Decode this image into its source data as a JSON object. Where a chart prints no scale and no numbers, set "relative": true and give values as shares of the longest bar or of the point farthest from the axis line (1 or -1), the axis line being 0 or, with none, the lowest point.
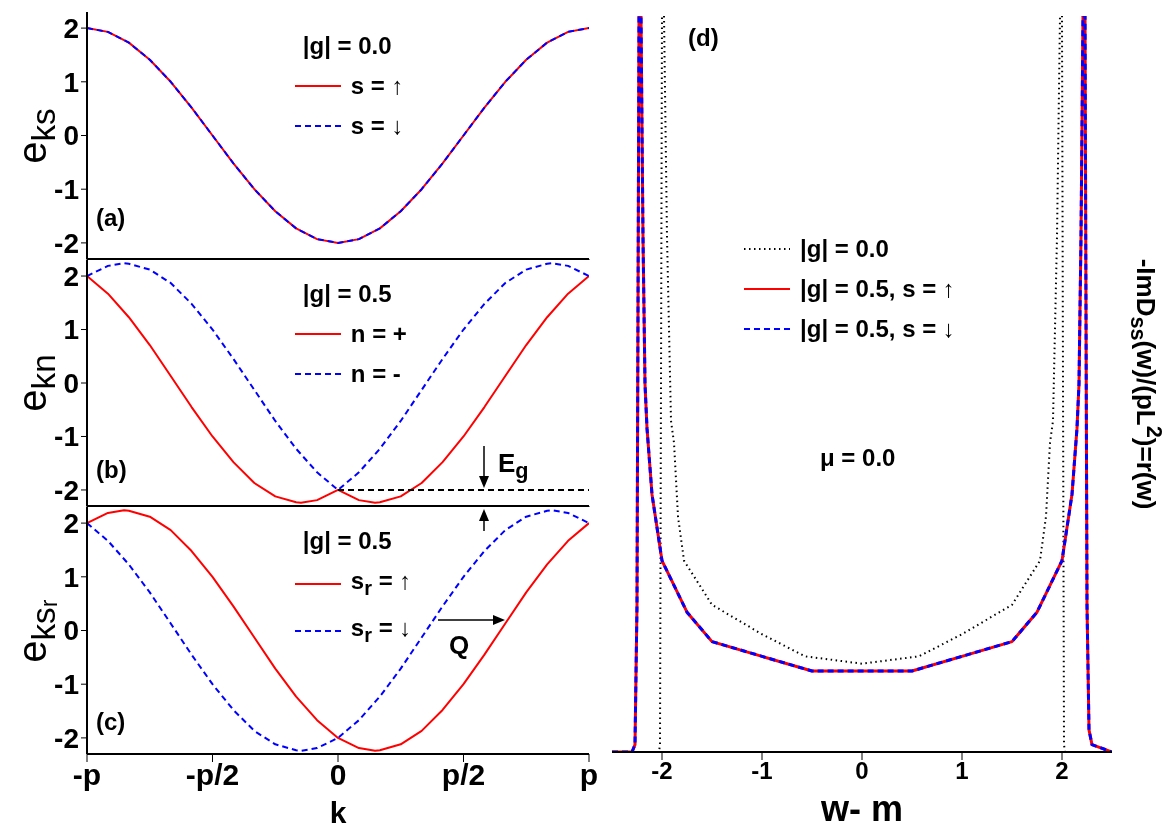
{
  "chart_data": [
    {
      "type": "line",
      "ylabel": "e$_{ks}$",
      "legend_title": "|g| = 0.0",
      "legend": "top",
      "tick_labels": "y",
      "xlim": [
        -3.142,
        3.142
      ],
      "xticks": [
        {
          "value": -3.142,
          "label": null
        },
        {
          "value": -1.571,
          "label": null
        },
        {
          "value": 0,
          "label": null
        },
        {
          "value": 1.571,
          "label": null
        },
        {
          "value": 3.142,
          "label": null
        }
      ],
      "ylim": [
        -2.3,
        2.3
      ],
      "yticks": [
        -2,
        -1,
        0,
        1,
        2
      ],
      "annotations": [
        "(a)"
      ],
      "series": [
        {
          "name": "s = ↑",
          "color": "#ff0000",
          "line_style": "solid",
          "x": [
            -3.142,
            -2.88,
            -2.618,
            -2.356,
            -2.094,
            -1.833,
            -1.571,
            -1.309,
            -1.047,
            -0.785,
            -0.524,
            -0.262,
            0,
            0.262,
            0.524,
            0.785,
            1.047,
            1.309,
            1.571,
            1.833,
            2.094,
            2.356,
            2.618,
            2.88,
            3.142
          ],
          "values": [
            2,
            1.93,
            1.73,
            1.41,
            1,
            0.52,
            0,
            -0.52,
            -1,
            -1.41,
            -1.73,
            -1.93,
            -2,
            -1.93,
            -1.73,
            -1.41,
            -1,
            -0.52,
            0,
            0.52,
            1,
            1.41,
            1.73,
            1.93,
            2
          ]
        },
        {
          "name": "s = ↓",
          "color": "#0000ff",
          "line_style": "dashed",
          "x": [
            -3.142,
            -2.88,
            -2.618,
            -2.356,
            -2.094,
            -1.833,
            -1.571,
            -1.309,
            -1.047,
            -0.785,
            -0.524,
            -0.262,
            0,
            0.262,
            0.524,
            0.785,
            1.047,
            1.309,
            1.571,
            1.833,
            2.094,
            2.356,
            2.618,
            2.88,
            3.142
          ],
          "values": [
            2,
            1.93,
            1.73,
            1.41,
            1,
            0.52,
            0,
            -0.52,
            -1,
            -1.41,
            -1.73,
            -1.93,
            -2,
            -1.93,
            -1.73,
            -1.41,
            -1,
            -0.52,
            0,
            0.52,
            1,
            1.41,
            1.73,
            1.93,
            2
          ]
        }
      ]
    },
    {
      "type": "line",
      "ylabel": "e$_{kn}$",
      "legend_title": "|g| = 0.5",
      "legend": "top",
      "tick_labels": "y",
      "xlim": [
        -3.142,
        3.142
      ],
      "xticks": [
        {
          "value": -3.142,
          "label": null
        },
        {
          "value": -1.571,
          "label": null
        },
        {
          "value": 0,
          "label": null
        },
        {
          "value": 1.571,
          "label": null
        },
        {
          "value": 3.142,
          "label": null
        }
      ],
      "ylim": [
        -2.3,
        2.3
      ],
      "yticks": [
        -2,
        -1,
        0,
        1,
        2
      ],
      "annotations": [
        "(b)",
        "E$_{g}$"
      ],
      "series": [
        {
          "name": "n = +",
          "color": "#ff0000",
          "line_style": "solid",
          "x": [
            -3.142,
            -2.88,
            -2.618,
            -2.356,
            -2.094,
            -1.833,
            -1.571,
            -1.309,
            -1.047,
            -0.785,
            -0.524,
            -0.464,
            -0.262,
            0,
            0.262,
            0.464,
            0.524,
            0.785,
            1.047,
            1.309,
            1.571,
            1.833,
            2.094,
            2.356,
            2.618,
            2.88,
            3.142
          ],
          "values": [
            2,
            1.67,
            1.23,
            0.71,
            0.13,
            -0.45,
            -1,
            -1.48,
            -1.87,
            -2.12,
            -2.23,
            -2.24,
            -2.19,
            -2,
            -2.19,
            -2.24,
            -2.23,
            -2.12,
            -1.87,
            -1.48,
            -1,
            -0.45,
            0.13,
            0.71,
            1.23,
            1.67,
            2
          ]
        },
        {
          "name": "n = -",
          "color": "#0000ff",
          "line_style": "dashed",
          "x": [
            -3.142,
            -2.88,
            -2.678,
            -2.618,
            -2.356,
            -2.094,
            -1.833,
            -1.571,
            -1.309,
            -1.047,
            -0.785,
            -0.524,
            -0.262,
            0,
            0.262,
            0.524,
            0.785,
            1.047,
            1.309,
            1.571,
            1.833,
            2.094,
            2.356,
            2.618,
            2.678,
            2.88,
            3.142
          ],
          "values": [
            2,
            2.19,
            2.24,
            2.23,
            2.12,
            1.87,
            1.48,
            1,
            0.45,
            -0.13,
            -0.71,
            -1.23,
            -1.67,
            -2,
            -1.67,
            -1.23,
            -0.71,
            -0.13,
            0.45,
            1,
            1.48,
            1.87,
            2.12,
            2.23,
            2.24,
            2.19,
            2
          ]
        },
        {
          "color": "#000000",
          "line_style": "dashed",
          "x": [
            0,
            3.142
          ],
          "values": [
            -2,
            -2
          ]
        }
      ]
    },
    {
      "type": "line",
      "ylabel": "e$_{ksᵣ}$",
      "xlabel": "k",
      "legend_title": "|g| = 0.5",
      "legend": "top",
      "xlim": [
        -3.142,
        3.142
      ],
      "xticks": [
        {
          "value": -3.142,
          "label": "-p"
        },
        {
          "value": -1.571,
          "label": "-p/2"
        },
        0,
        {
          "value": 1.571,
          "label": "p/2"
        },
        {
          "value": 3.142,
          "label": "p"
        }
      ],
      "ylim": [
        -2.3,
        2.3
      ],
      "yticks": [
        -2,
        -1,
        0,
        1,
        2
      ],
      "annotations": [
        "(c)",
        "Q"
      ],
      "series": [
        {
          "name": "s$_{r}$ = ↑",
          "color": "#ff0000",
          "line_style": "solid",
          "x": [
            -3.142,
            -2.88,
            -2.678,
            -2.618,
            -2.356,
            -2.094,
            -1.833,
            -1.571,
            -1.309,
            -1.047,
            -0.785,
            -0.524,
            -0.262,
            0,
            0.262,
            0.464,
            0.524,
            0.785,
            1.047,
            1.309,
            1.571,
            1.833,
            2.094,
            2.356,
            2.618,
            2.88,
            3.142
          ],
          "values": [
            2,
            2.19,
            2.24,
            2.23,
            2.12,
            1.87,
            1.48,
            1,
            0.45,
            -0.13,
            -0.71,
            -1.23,
            -1.67,
            -2,
            -2.19,
            -2.24,
            -2.23,
            -2.12,
            -1.87,
            -1.48,
            -1,
            -0.45,
            0.13,
            0.71,
            1.23,
            1.67,
            2
          ]
        },
        {
          "name": "s$_{r}$ = ↓",
          "color": "#0000ff",
          "line_style": "dashed",
          "x": [
            -3.142,
            -2.88,
            -2.618,
            -2.356,
            -2.094,
            -1.833,
            -1.571,
            -1.309,
            -1.047,
            -0.785,
            -0.524,
            -0.464,
            -0.262,
            0,
            0.262,
            0.524,
            0.785,
            1.047,
            1.309,
            1.571,
            1.833,
            2.094,
            2.356,
            2.618,
            2.678,
            2.88,
            3.142
          ],
          "values": [
            2,
            1.67,
            1.23,
            0.71,
            0.13,
            -0.45,
            -1,
            -1.48,
            -1.87,
            -2.12,
            -2.23,
            -2.24,
            -2.19,
            -2,
            -1.67,
            -1.23,
            -0.71,
            -0.13,
            0.45,
            1,
            1.48,
            1.87,
            2.12,
            2.23,
            2.24,
            2.19,
            2
          ]
        }
      ]
    },
    {
      "type": "line",
      "xlabel": "w- m",
      "ylabel": "-ImD$_{ss}$(w)/(pL$^{2}$)=r(w)",
      "legend": "left",
      "relative": true,
      "xlim": [
        -2.5,
        2.5
      ],
      "xticks": [
        -2,
        -1,
        0,
        1,
        2
      ],
      "annotations": [
        "(d)",
        "μ = 0.0"
      ],
      "series": [
        {
          "name": "|g| = 0.0",
          "color": "#000000",
          "line_style": "dotted",
          "x": [
            -2.5,
            -2.03,
            -2.02,
            -2.01,
            -2.0,
            -1.98,
            -1.95,
            -1.91,
            -1.88,
            -1.84,
            -1.78,
            -1.5,
            -1,
            -0.57,
            0,
            0.57,
            1,
            1.5,
            1.78,
            1.84,
            1.88,
            1.91,
            1.95,
            1.98,
            2.0,
            2.01,
            2.02,
            2.03,
            2.5
          ],
          "values": [
            0,
            0,
            0.01,
            0.5,
            1,
            1,
            0.7,
            0.45,
            0.42,
            0.32,
            0.26,
            0.2,
            0.16,
            0.13,
            0.12,
            0.13,
            0.16,
            0.2,
            0.26,
            0.32,
            0.42,
            0.45,
            0.7,
            1,
            1,
            0.5,
            0.01,
            0,
            0
          ]
        },
        {
          "name": "|g| = 0.5, s = ↑",
          "color": "#ff0000",
          "line_style": "solid",
          "x": [
            -2.5,
            -2.3,
            -2.27,
            -2.25,
            -2.23,
            -2.21,
            -2.19,
            -2.17,
            -2.15,
            -2.1,
            -2.0,
            -1.75,
            -1.5,
            -1,
            -0.5,
            0,
            0.5,
            1,
            1.5,
            1.75,
            2.0,
            2.1,
            2.15,
            2.17,
            2.19,
            2.21,
            2.23,
            2.25,
            2.27,
            2.3,
            2.5
          ],
          "values": [
            0,
            0,
            0.01,
            0.2,
            1,
            1,
            0.7,
            0.5,
            0.44,
            0.35,
            0.26,
            0.19,
            0.15,
            0.13,
            0.11,
            0.11,
            0.11,
            0.13,
            0.15,
            0.19,
            0.26,
            0.35,
            0.44,
            0.5,
            0.7,
            1,
            1,
            0.2,
            0.03,
            0.01,
            0
          ]
        },
        {
          "name": "|g| = 0.5, s = ↓",
          "color": "#0000ff",
          "line_style": "dashed",
          "x": [
            -2.5,
            -2.3,
            -2.27,
            -2.25,
            -2.23,
            -2.21,
            -2.19,
            -2.17,
            -2.15,
            -2.1,
            -2.0,
            -1.75,
            -1.5,
            -1,
            -0.5,
            0,
            0.5,
            1,
            1.5,
            1.75,
            2.0,
            2.1,
            2.15,
            2.17,
            2.19,
            2.21,
            2.23,
            2.25,
            2.27,
            2.3,
            2.5
          ],
          "values": [
            0,
            0,
            0.01,
            0.2,
            1,
            1,
            0.7,
            0.5,
            0.44,
            0.35,
            0.26,
            0.19,
            0.15,
            0.13,
            0.11,
            0.11,
            0.11,
            0.13,
            0.15,
            0.19,
            0.26,
            0.35,
            0.44,
            0.5,
            0.7,
            1,
            1,
            0.2,
            0.03,
            0.01,
            0
          ]
        }
      ]
    }
  ]
}
